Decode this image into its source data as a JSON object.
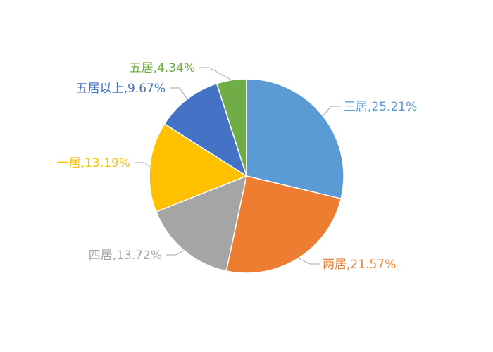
{
  "chart_data": {
    "type": "pie",
    "title": "",
    "categories": [
      "三居",
      "两居",
      "四居",
      "一居",
      "五居以上",
      "五居"
    ],
    "values": [
      25.21,
      21.57,
      13.72,
      13.19,
      9.67,
      4.34
    ],
    "labels": [
      "三居,25.21%",
      "两居,21.57%",
      "四居,13.72%",
      "一居,13.19%",
      "五居以上,9.67%",
      "五居,4.34%"
    ],
    "colors": [
      "#5B9BD5",
      "#ED7D31",
      "#A5A5A5",
      "#FFC000",
      "#4472C4",
      "#70AD47"
    ],
    "start_angle": "12 o'clock",
    "direction": "clockwise",
    "legend": "none",
    "data_label_format": "category,percent"
  }
}
